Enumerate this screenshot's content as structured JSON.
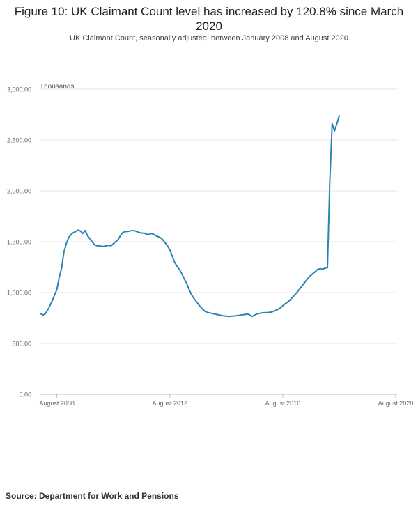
{
  "title": "Figure 10: UK Claimant Count level has increased by 120.8% since March 2020",
  "subtitle": "UK Claimant Count, seasonally adjusted, between January 2008 and August 2020",
  "source": "Source: Department for Work and Pensions",
  "colors": {
    "line": "#2a85ad",
    "grid": "#e6e6e6",
    "axis": "#bbbbbb",
    "tick_text": "#666666"
  },
  "chart_data": {
    "type": "line",
    "ylabel": "Thousands",
    "ylim": [
      0,
      3000
    ],
    "y_ticks": [
      0,
      500,
      1000,
      1500,
      2000,
      2500,
      3000
    ],
    "y_tick_labels": [
      "0.00",
      "500.00",
      "1,000.00",
      "1,500.00",
      "2,000.00",
      "2,500.00",
      "3,000.00"
    ],
    "x_ticks": [
      7,
      55,
      103,
      151
    ],
    "x_tick_labels": [
      "August 2008",
      "August 2012",
      "August 2016",
      "August 2020"
    ],
    "x_range": [
      0,
      151
    ],
    "grid": true,
    "series": [
      {
        "values": [
          795,
          780,
          790,
          825,
          870,
          920,
          975,
          1030,
          1150,
          1240,
          1400,
          1480,
          1540,
          1570,
          1590,
          1600,
          1615,
          1605,
          1580,
          1610,
          1560,
          1530,
          1500,
          1470,
          1460,
          1460,
          1455,
          1455,
          1460,
          1465,
          1460,
          1480,
          1500,
          1520,
          1560,
          1590,
          1600,
          1600,
          1605,
          1610,
          1608,
          1600,
          1590,
          1585,
          1585,
          1575,
          1570,
          1580,
          1575,
          1560,
          1550,
          1540,
          1520,
          1490,
          1460,
          1420,
          1360,
          1300,
          1260,
          1230,
          1190,
          1140,
          1100,
          1040,
          990,
          950,
          920,
          890,
          860,
          835,
          815,
          805,
          800,
          795,
          790,
          785,
          780,
          775,
          770,
          770,
          765,
          768,
          770,
          772,
          775,
          778,
          782,
          785,
          790,
          780,
          765,
          778,
          790,
          795,
          800,
          802,
          803,
          805,
          808,
          815,
          825,
          835,
          850,
          870,
          890,
          905,
          925,
          950,
          975,
          1000,
          1030,
          1060,
          1090,
          1120,
          1150,
          1170,
          1190,
          1210,
          1230,
          1235,
          1230,
          1240,
          1245,
          2100,
          2660,
          2590,
          2660,
          2740
        ]
      }
    ]
  }
}
